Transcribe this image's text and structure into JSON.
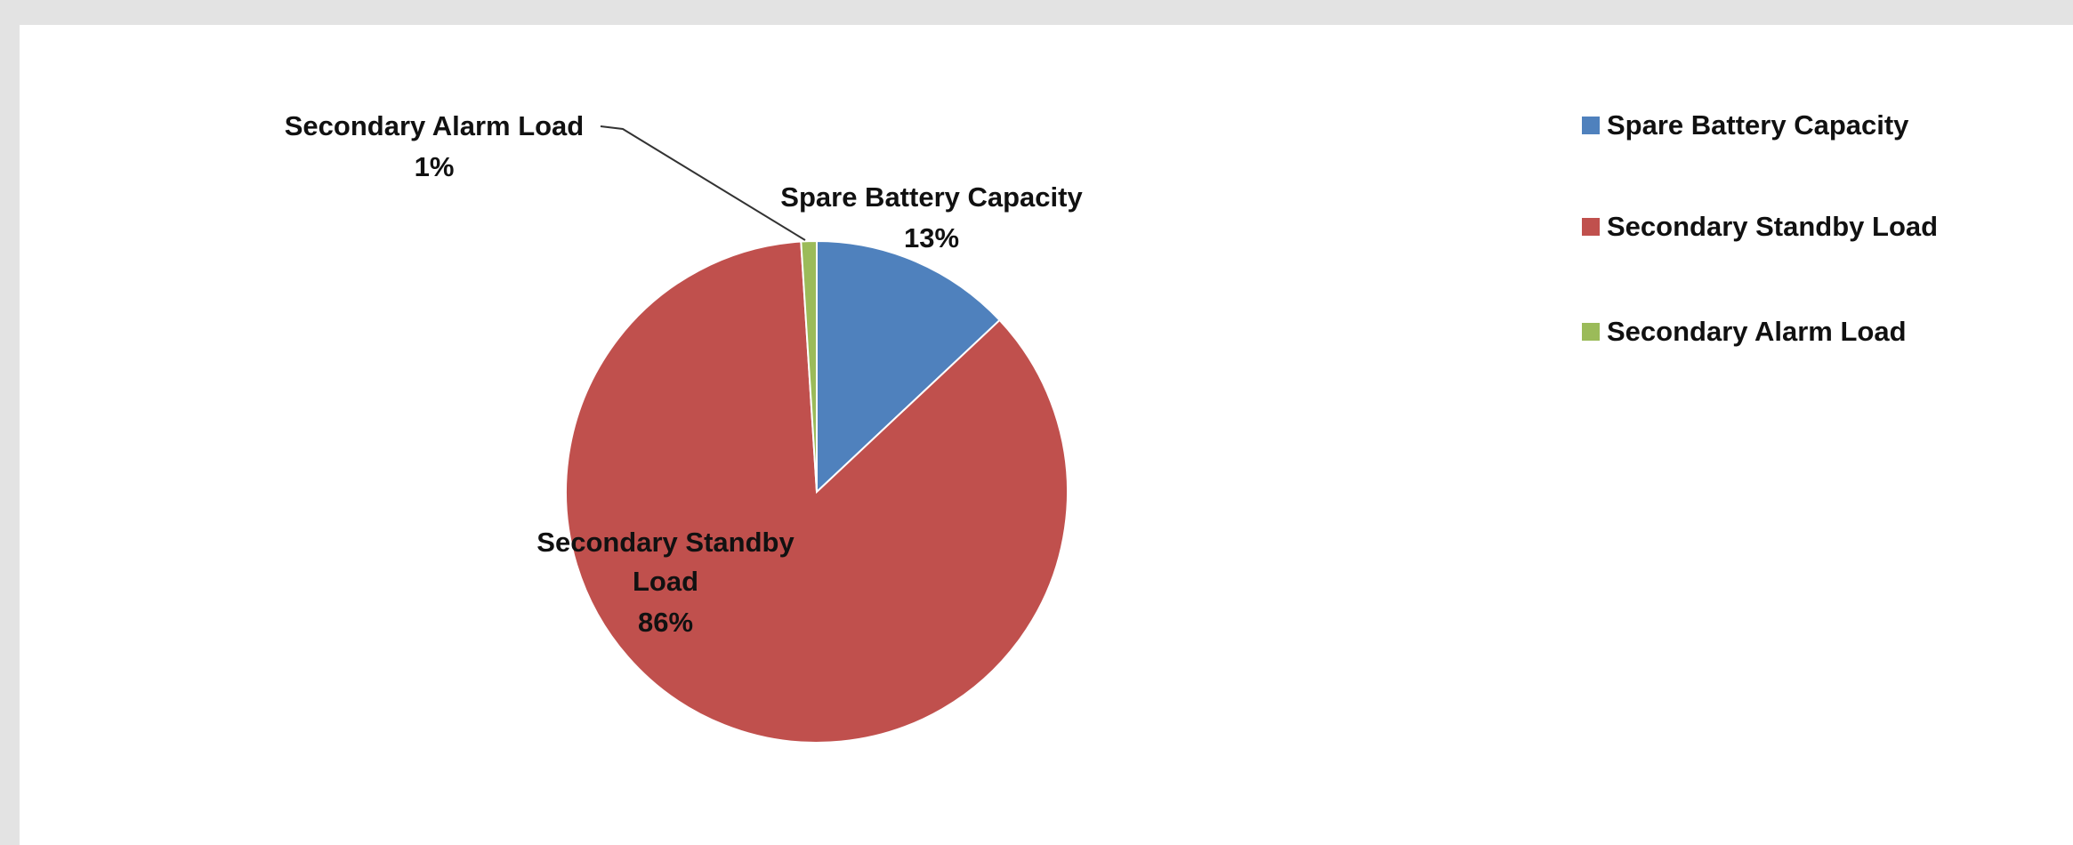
{
  "chart_data": {
    "type": "pie",
    "categories": [
      "Spare Battery Capacity",
      "Secondary Standby Load",
      "Secondary Alarm  Load"
    ],
    "values": [
      13,
      86,
      1
    ],
    "colors": [
      "#4f81bd",
      "#c0504d",
      "#9bbb59"
    ],
    "data_labels": [
      {
        "name": "Spare Battery Capacity",
        "percent": "13%"
      },
      {
        "name_lines": [
          "Secondary Standby",
          "Load"
        ],
        "percent": "86%"
      },
      {
        "name": "Secondary Alarm  Load",
        "percent": "1%"
      }
    ],
    "legend": {
      "placement": "top-right",
      "entries": [
        "Spare Battery Capacity",
        "Secondary Standby Load",
        "Secondary Alarm  Load"
      ]
    }
  }
}
